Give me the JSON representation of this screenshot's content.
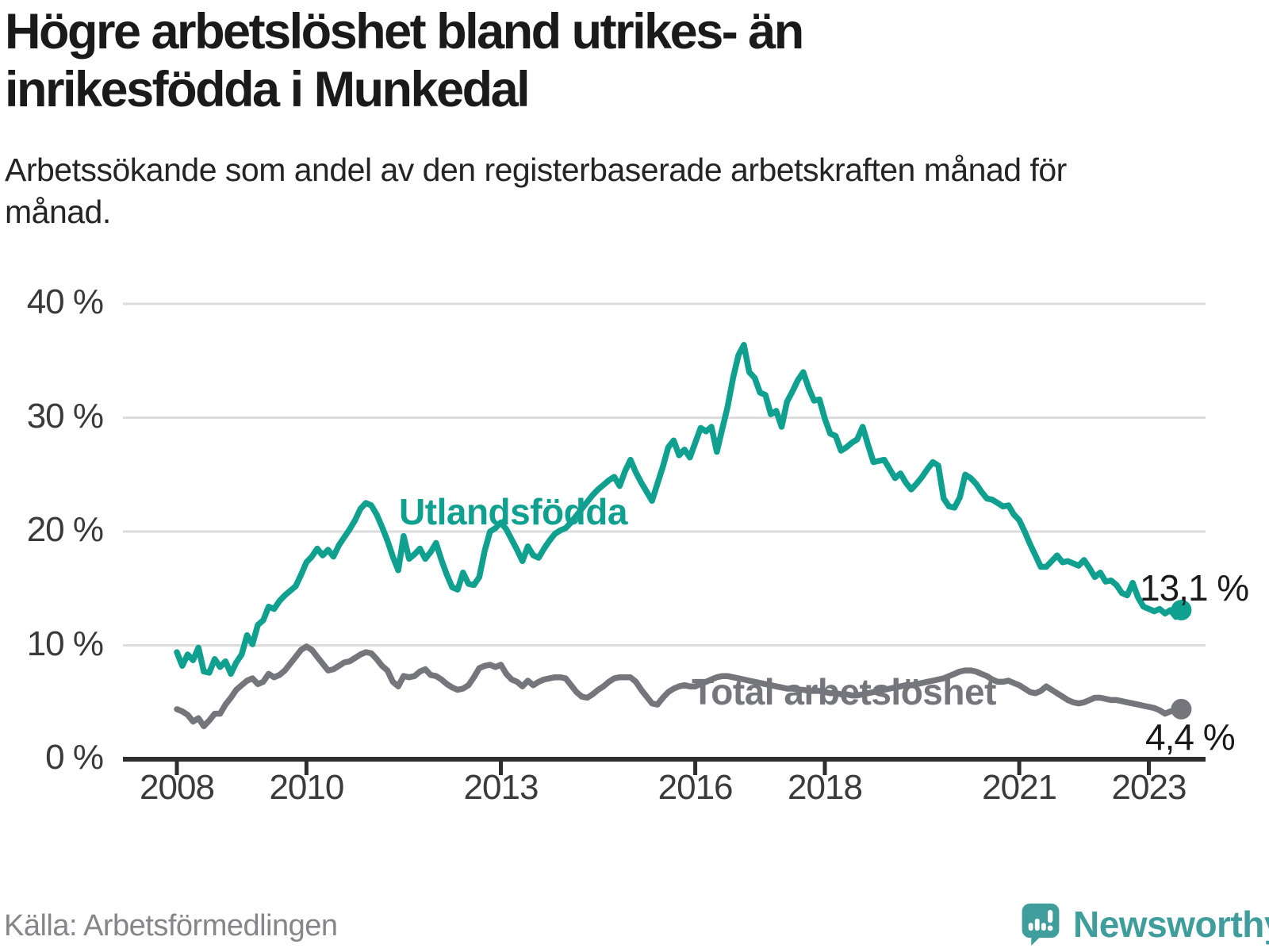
{
  "title": "Högre arbetslöshet bland utrikes- än inrikesfödda i Munkedal",
  "subtitle": "Arbetssökande som andel av den registerbaserade arbetskraften månad för månad.",
  "source": "Källa: Arbetsförmedlingen",
  "logo": {
    "brand": "Newsworthy",
    "icon": "bar-chart-speech-bubble-icon",
    "color": "#3f9d9c"
  },
  "colors": {
    "foreign_born_line": "#10a08f",
    "total_line": "#75757c",
    "text": "#1a1a1a",
    "axis_text": "#3a3a3a",
    "grid": "#dcdcdc",
    "axis": "#2e2e2e",
    "muted": "#85858a"
  },
  "chart_data": {
    "type": "line",
    "title": "Högre arbetslöshet bland utrikes- än inrikesfödda i Munkedal",
    "subtitle": "Arbetssökande som andel av den registerbaserade arbetskraften månad för månad.",
    "unit": "percent",
    "x_start_year": 2008,
    "x_start_month": 1,
    "frequency": "monthly",
    "xlim": [
      2007.2,
      2024.0
    ],
    "ylim": [
      0,
      42
    ],
    "grid": true,
    "legend_position": "inline-labels",
    "x_ticks": [
      {
        "value": 2008,
        "label": "2008"
      },
      {
        "value": 2010,
        "label": "2010"
      },
      {
        "value": 2013,
        "label": "2013"
      },
      {
        "value": 2016,
        "label": "2016"
      },
      {
        "value": 2018,
        "label": "2018"
      },
      {
        "value": 2021,
        "label": "2021"
      },
      {
        "value": 2023,
        "label": "2023"
      }
    ],
    "y_ticks": [
      {
        "value": 0,
        "label": "0 %"
      },
      {
        "value": 10,
        "label": "10 %"
      },
      {
        "value": 20,
        "label": "20 %"
      },
      {
        "value": 30,
        "label": "30 %"
      },
      {
        "value": 40,
        "label": "40 %"
      }
    ],
    "series": [
      {
        "name": "Utlandsfödda",
        "color": "#10a08f",
        "end_label": "13,1 %",
        "last_value": 13.1,
        "values": [
          9.4,
          8.2,
          9.2,
          8.7,
          9.8,
          7.7,
          7.6,
          8.8,
          8.1,
          8.6,
          7.5,
          8.5,
          9.2,
          10.9,
          10.1,
          11.8,
          12.2,
          13.4,
          13.2,
          13.9,
          14.4,
          14.8,
          15.2,
          16.2,
          17.3,
          17.8,
          18.5,
          17.9,
          18.4,
          17.8,
          18.8,
          19.5,
          20.2,
          21.0,
          22.0,
          22.5,
          22.3,
          21.5,
          20.4,
          19.2,
          17.8,
          16.6,
          19.6,
          17.6,
          18.0,
          18.5,
          17.6,
          18.2,
          19.0,
          17.5,
          16.2,
          15.1,
          14.9,
          16.4,
          15.4,
          15.3,
          16.0,
          18.3,
          20.0,
          20.3,
          20.8,
          20.2,
          19.3,
          18.4,
          17.4,
          18.7,
          17.9,
          17.7,
          18.5,
          19.2,
          19.8,
          20.1,
          20.3,
          20.8,
          21.4,
          22.0,
          22.6,
          23.2,
          23.7,
          24.1,
          24.5,
          24.8,
          24.0,
          25.3,
          26.3,
          25.2,
          24.3,
          23.5,
          22.7,
          24.2,
          25.7,
          27.4,
          28.0,
          26.7,
          27.2,
          26.5,
          27.8,
          29.1,
          28.8,
          29.2,
          27.0,
          29.0,
          31.0,
          33.5,
          35.5,
          36.4,
          34.0,
          33.5,
          32.2,
          32.0,
          30.3,
          30.6,
          29.2,
          31.4,
          32.3,
          33.3,
          34.0,
          32.6,
          31.5,
          31.6,
          29.9,
          28.6,
          28.4,
          27.1,
          27.4,
          27.8,
          28.1,
          29.2,
          27.6,
          26.1,
          26.2,
          26.3,
          25.5,
          24.7,
          25.1,
          24.3,
          23.7,
          24.2,
          24.8,
          25.5,
          26.1,
          25.8,
          22.9,
          22.2,
          22.1,
          23.0,
          25.0,
          24.7,
          24.2,
          23.5,
          22.9,
          22.8,
          22.5,
          22.2,
          22.3,
          21.5,
          21.0,
          20.0,
          18.9,
          17.9,
          16.9,
          16.9,
          17.4,
          17.9,
          17.3,
          17.4,
          17.2,
          17.0,
          17.5,
          16.8,
          16.0,
          16.4,
          15.6,
          15.7,
          15.3,
          14.6,
          14.4,
          15.5,
          14.2,
          13.4,
          13.2,
          13.0,
          13.2,
          12.8,
          13.1,
          12.5,
          13.1
        ]
      },
      {
        "name": "Total arbetslöshet",
        "color": "#75757c",
        "end_label": "4,4 %",
        "last_value": 4.4,
        "values": [
          4.4,
          4.2,
          3.9,
          3.3,
          3.6,
          2.9,
          3.4,
          4.0,
          4.0,
          4.8,
          5.4,
          6.1,
          6.5,
          6.9,
          7.1,
          6.6,
          6.8,
          7.5,
          7.2,
          7.4,
          7.8,
          8.4,
          9.0,
          9.6,
          9.9,
          9.6,
          9.0,
          8.4,
          7.8,
          7.9,
          8.2,
          8.5,
          8.6,
          8.9,
          9.2,
          9.4,
          9.3,
          8.8,
          8.2,
          7.8,
          6.8,
          6.4,
          7.3,
          7.2,
          7.3,
          7.7,
          7.9,
          7.4,
          7.3,
          7.0,
          6.6,
          6.3,
          6.1,
          6.2,
          6.5,
          7.2,
          8.0,
          8.2,
          8.3,
          8.1,
          8.3,
          7.5,
          7.0,
          6.8,
          6.4,
          6.9,
          6.5,
          6.8,
          7.0,
          7.1,
          7.2,
          7.2,
          7.1,
          6.5,
          5.9,
          5.5,
          5.4,
          5.7,
          6.1,
          6.4,
          6.8,
          7.1,
          7.2,
          7.2,
          7.2,
          6.8,
          6.1,
          5.5,
          4.9,
          4.8,
          5.4,
          5.9,
          6.2,
          6.4,
          6.5,
          6.4,
          6.4,
          6.6,
          6.8,
          7.0,
          7.2,
          7.3,
          7.3,
          7.2,
          7.1,
          7.0,
          6.9,
          6.8,
          6.7,
          6.6,
          6.5,
          6.4,
          6.3,
          6.2,
          6.2,
          6.1,
          6.1,
          6.0,
          6.0,
          6.0,
          5.9,
          5.8,
          5.8,
          5.7,
          5.7,
          5.6,
          5.6,
          5.7,
          5.8,
          5.9,
          6.0,
          6.1,
          6.2,
          6.3,
          6.4,
          6.5,
          6.5,
          6.6,
          6.7,
          6.8,
          6.9,
          7.0,
          7.1,
          7.3,
          7.5,
          7.7,
          7.8,
          7.8,
          7.7,
          7.5,
          7.3,
          7.0,
          6.8,
          6.8,
          6.9,
          6.7,
          6.5,
          6.2,
          5.9,
          5.8,
          6.0,
          6.4,
          6.1,
          5.8,
          5.5,
          5.2,
          5.0,
          4.9,
          5.0,
          5.2,
          5.4,
          5.4,
          5.3,
          5.2,
          5.2,
          5.1,
          5.0,
          4.9,
          4.8,
          4.7,
          4.6,
          4.5,
          4.3,
          4.0,
          4.2,
          4.3,
          4.4
        ]
      }
    ]
  }
}
